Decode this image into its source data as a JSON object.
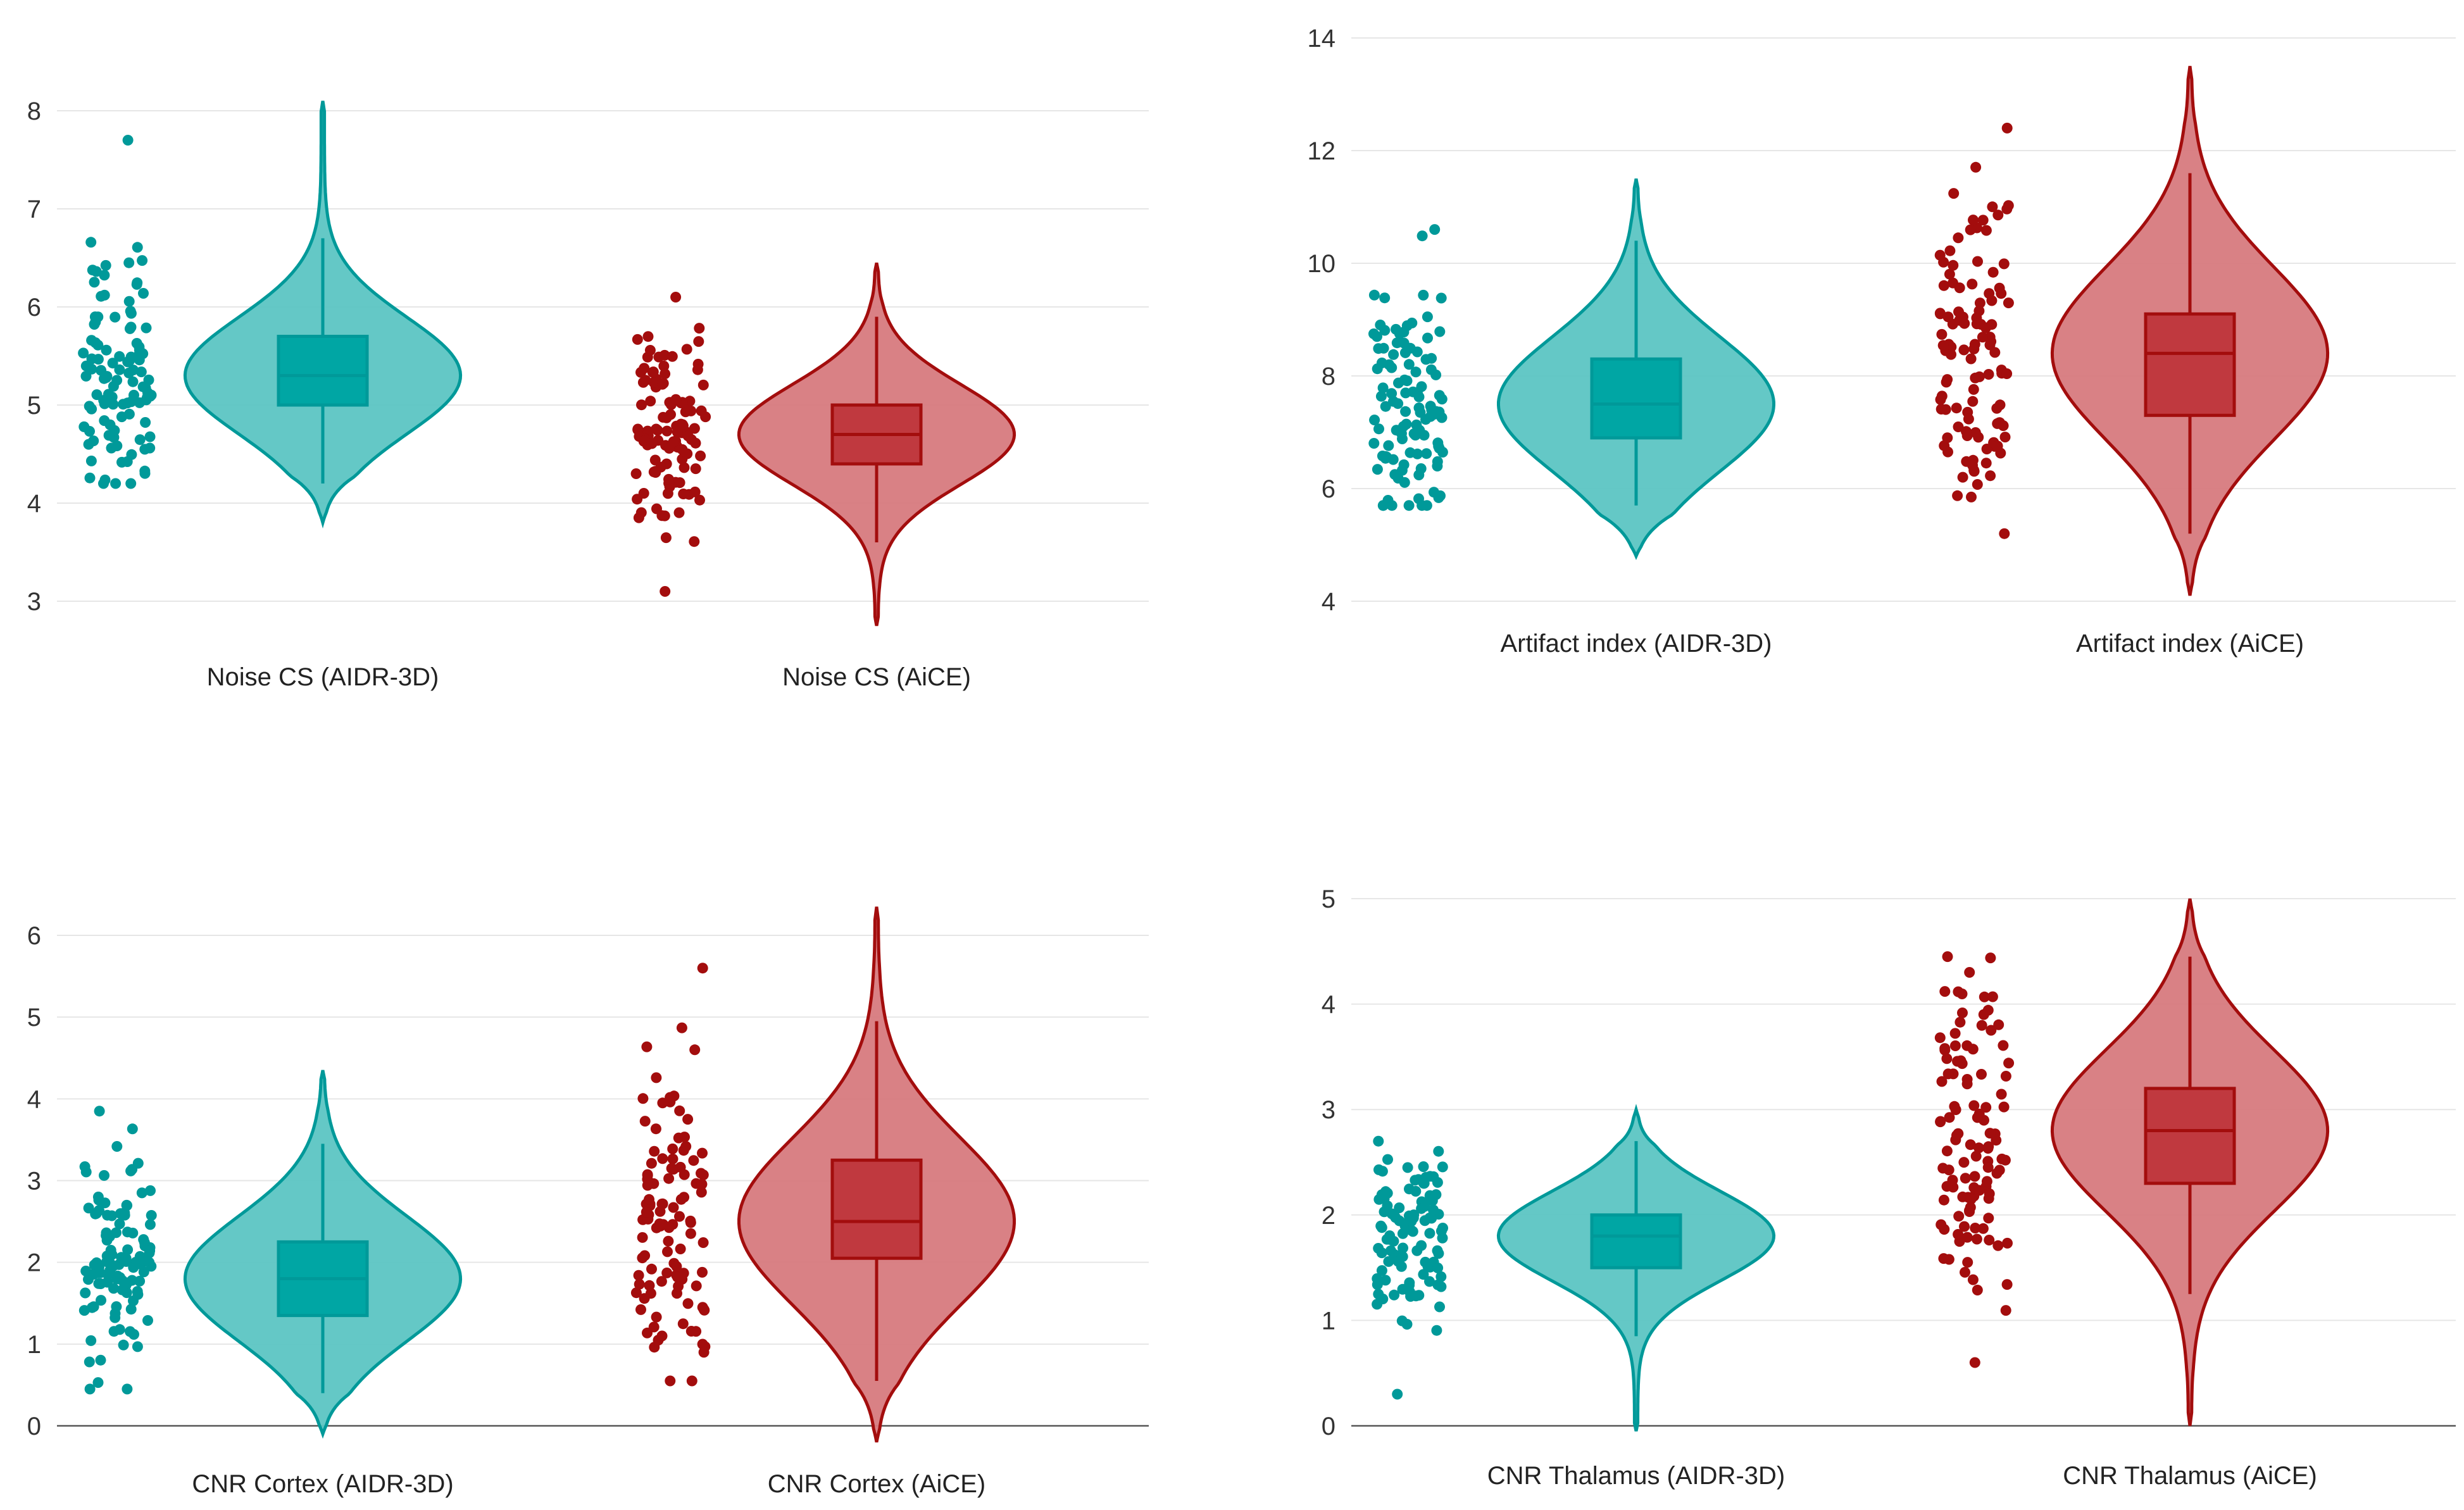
{
  "colors": {
    "teal": "#009999",
    "teal_fill": "#5cc5c3",
    "teal_box": "#00a6a4",
    "red": "#a30d0d",
    "red_fill": "#d77a7e",
    "red_box": "#c0393f"
  },
  "chart_data": [
    {
      "type": "violin",
      "ylim": [
        2.8,
        8.3
      ],
      "yticks": [
        "3",
        "4",
        "5",
        "6",
        "7",
        "8"
      ],
      "baseline": false,
      "groups": [
        {
          "name": "Noise CS (AIDR-3D)",
          "color": "teal",
          "min": 3.8,
          "max": 8.1,
          "q1": 5.0,
          "median": 5.3,
          "q3": 5.7,
          "whisker_low": 4.2,
          "whisker_high": 6.7,
          "points_min": 4.2,
          "points_max": 7.7,
          "points_center": 5.3
        },
        {
          "name": "Noise CS (AiCE)",
          "color": "red",
          "min": 2.75,
          "max": 6.45,
          "q1": 4.4,
          "median": 4.7,
          "q3": 5.0,
          "whisker_low": 3.6,
          "whisker_high": 5.9,
          "points_min": 3.1,
          "points_max": 6.1,
          "points_center": 4.7
        }
      ]
    },
    {
      "type": "violin",
      "ylim": [
        3.7,
        14.2
      ],
      "yticks": [
        "4",
        "6",
        "8",
        "10",
        "12",
        "14"
      ],
      "baseline": false,
      "groups": [
        {
          "name": "Artifact index (AIDR-3D)",
          "color": "teal",
          "min": 4.8,
          "max": 11.5,
          "q1": 6.9,
          "median": 7.5,
          "q3": 8.3,
          "whisker_low": 5.7,
          "whisker_high": 10.4,
          "points_min": 5.7,
          "points_max": 10.6,
          "points_center": 7.5
        },
        {
          "name": "Artifact index (AiCE)",
          "color": "red",
          "min": 4.1,
          "max": 13.5,
          "q1": 7.3,
          "median": 8.4,
          "q3": 9.1,
          "whisker_low": 5.2,
          "whisker_high": 11.6,
          "points_min": 5.2,
          "points_max": 12.4,
          "points_center": 8.4
        }
      ]
    },
    {
      "type": "violin",
      "ylim": [
        0,
        6.6
      ],
      "yticks": [
        "0",
        "1",
        "2",
        "3",
        "4",
        "5",
        "6"
      ],
      "baseline": true,
      "groups": [
        {
          "name": "CNR Cortex (AIDR-3D)",
          "color": "teal",
          "min": -0.1,
          "max": 4.35,
          "q1": 1.35,
          "median": 1.8,
          "q3": 2.25,
          "whisker_low": 0.4,
          "whisker_high": 3.45,
          "points_min": 0.45,
          "points_max": 3.85,
          "points_center": 1.85
        },
        {
          "name": "CNR Cortex (AiCE)",
          "color": "red",
          "min": -0.2,
          "max": 6.35,
          "q1": 2.05,
          "median": 2.5,
          "q3": 3.25,
          "whisker_low": 0.55,
          "whisker_high": 4.95,
          "points_min": 0.55,
          "points_max": 5.6,
          "points_center": 2.5
        }
      ]
    },
    {
      "type": "violin",
      "ylim": [
        0,
        5.3
      ],
      "yticks": [
        "0",
        "1",
        "2",
        "3",
        "4",
        "5"
      ],
      "baseline": true,
      "groups": [
        {
          "name": "CNR Thalamus (AIDR-3D)",
          "color": "teal",
          "min": -0.05,
          "max": 3.0,
          "q1": 1.5,
          "median": 1.8,
          "q3": 2.0,
          "whisker_low": 0.85,
          "whisker_high": 2.7,
          "points_min": 0.3,
          "points_max": 2.7,
          "points_center": 1.8
        },
        {
          "name": "CNR Thalamus (AiCE)",
          "color": "red",
          "min": 0.0,
          "max": 5.0,
          "q1": 2.3,
          "median": 2.8,
          "q3": 3.2,
          "whisker_low": 1.25,
          "whisker_high": 4.45,
          "points_min": 0.6,
          "points_max": 4.45,
          "points_center": 2.8
        }
      ]
    }
  ]
}
